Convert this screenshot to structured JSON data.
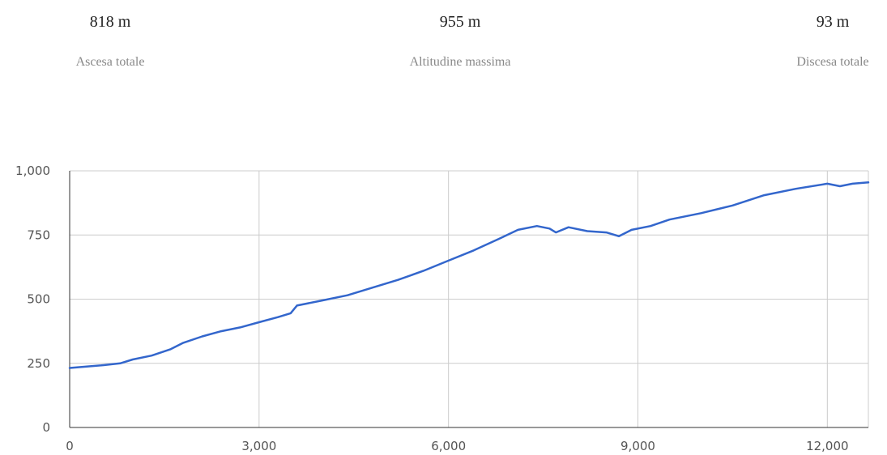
{
  "stats": [
    {
      "value": "818 m",
      "label": "Ascesa totale"
    },
    {
      "value": "955 m",
      "label": "Altitudine massima"
    },
    {
      "value": "93 m",
      "label": "Discesa totale"
    }
  ],
  "colors": {
    "line": "#3366cc",
    "grid": "#cccccc",
    "axis": "#333333",
    "text": "#555555"
  },
  "chart_data": {
    "type": "line",
    "title": "",
    "xlabel": "",
    "ylabel": "",
    "xlim": [
      0,
      12650
    ],
    "ylim": [
      0,
      1000
    ],
    "x_ticks": [
      0,
      3000,
      6000,
      9000,
      12000
    ],
    "y_ticks": [
      0,
      250,
      500,
      750,
      1000
    ],
    "x_tick_labels": [
      "0",
      "3,000",
      "6,000",
      "9,000",
      "12,000"
    ],
    "y_tick_labels": [
      "0",
      "250",
      "500",
      "750",
      "1,000"
    ],
    "grid": true,
    "legend": "none",
    "series": [
      {
        "x": [
          0,
          500,
          800,
          1000,
          1300,
          1600,
          1800,
          2100,
          2400,
          2700,
          3000,
          3300,
          3500,
          3600,
          4000,
          4400,
          4800,
          5200,
          5600,
          6000,
          6400,
          6800,
          7100,
          7400,
          7600,
          7700,
          7900,
          8200,
          8500,
          8700,
          8900,
          9200,
          9500,
          10000,
          10500,
          11000,
          11500,
          12000,
          12200,
          12400,
          12650
        ],
        "y": [
          232,
          242,
          250,
          265,
          280,
          305,
          330,
          355,
          375,
          390,
          410,
          430,
          445,
          475,
          495,
          515,
          545,
          575,
          610,
          650,
          690,
          735,
          770,
          785,
          775,
          760,
          780,
          765,
          760,
          745,
          770,
          785,
          810,
          835,
          865,
          905,
          930,
          950,
          940,
          950,
          955
        ]
      }
    ]
  }
}
